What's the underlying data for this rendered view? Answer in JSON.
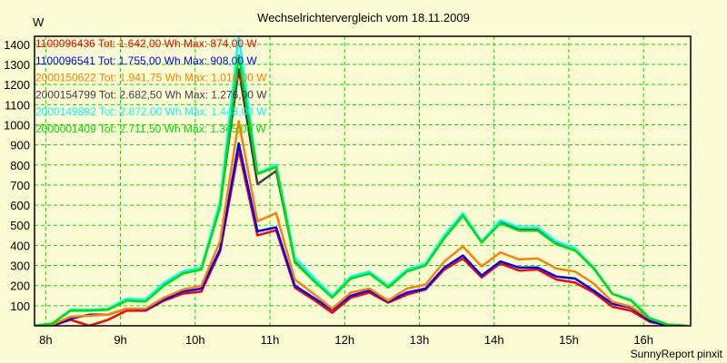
{
  "chart_data": {
    "type": "line",
    "title": "Wechselrichtervergleich vom 18.11.2009",
    "ylabel": "W",
    "xlabel": "",
    "footer": "SunnyReport pinxit",
    "ylim": [
      0,
      1440
    ],
    "xlim_hours": [
      7.85,
      16.63
    ],
    "yticks": [
      100,
      200,
      300,
      400,
      500,
      600,
      700,
      800,
      900,
      1000,
      1100,
      1200,
      1300,
      1400
    ],
    "xticks": [
      {
        "label": "8h",
        "hour": 8
      },
      {
        "label": "9h",
        "hour": 9
      },
      {
        "label": "10h",
        "hour": 10
      },
      {
        "label": "11h",
        "hour": 11
      },
      {
        "label": "12h",
        "hour": 12
      },
      {
        "label": "13h",
        "hour": 13
      },
      {
        "label": "14h",
        "hour": 14
      },
      {
        "label": "15h",
        "hour": 15
      },
      {
        "label": "16h",
        "hour": 16
      }
    ],
    "grid": true,
    "legend_position": "top-left",
    "x_start_hour": 7.833,
    "x_step_hours": 0.25,
    "series": [
      {
        "name": "1100096436",
        "legend": "1100096436 Tot: 1.642,00 Wh Max: 874,00 W",
        "color": "#ff0000",
        "values": [
          0,
          0,
          30,
          0,
          30,
          75,
          75,
          125,
          160,
          170,
          370,
          874,
          450,
          475,
          190,
          130,
          65,
          140,
          165,
          115,
          155,
          180,
          280,
          335,
          240,
          310,
          275,
          280,
          230,
          215,
          165,
          95,
          75,
          20,
          0,
          0
        ]
      },
      {
        "name": "1100096541",
        "legend": "1100096541 Tot: 1.755,00 Wh Max: 908,00 W",
        "color": "#0000ff",
        "values": [
          0,
          0,
          35,
          55,
          55,
          85,
          80,
          130,
          170,
          185,
          380,
          908,
          470,
          490,
          200,
          140,
          80,
          150,
          175,
          120,
          165,
          185,
          290,
          350,
          250,
          320,
          290,
          290,
          245,
          235,
          175,
          110,
          90,
          25,
          0,
          0
        ]
      },
      {
        "name": "2000150622",
        "legend": "2000150622 Tot: 1.941,75 Wh Max: 1.018,00 W",
        "color": "#ff8000",
        "values": [
          0,
          5,
          45,
          50,
          55,
          85,
          85,
          140,
          180,
          200,
          420,
          1018,
          520,
          560,
          230,
          160,
          85,
          165,
          185,
          125,
          185,
          205,
          320,
          395,
          295,
          365,
          330,
          335,
          285,
          270,
          210,
          120,
          95,
          35,
          5,
          0
        ]
      },
      {
        "name": "2000154799",
        "legend": "2000154799 Tot: 2.682,50 Wh Max: 1.276,00 W",
        "color": "#4a3a4a",
        "values": [
          0,
          10,
          78,
          78,
          82,
          128,
          124,
          205,
          265,
          285,
          600,
          1276,
          705,
          770,
          320,
          225,
          145,
          240,
          265,
          195,
          275,
          305,
          440,
          552,
          418,
          515,
          478,
          478,
          410,
          380,
          290,
          160,
          128,
          38,
          5,
          0
        ]
      },
      {
        "name": "2000149892",
        "legend": "2000149892 Tot: 2.872,00 Wh Max: 1.443,00 W",
        "color": "#00ffff",
        "values": [
          0,
          10,
          80,
          80,
          85,
          135,
          130,
          215,
          270,
          290,
          620,
          1443,
          760,
          800,
          340,
          240,
          150,
          245,
          270,
          200,
          280,
          310,
          450,
          560,
          420,
          525,
          490,
          490,
          420,
          385,
          290,
          160,
          130,
          40,
          5,
          0
        ]
      },
      {
        "name": "2000001409",
        "legend": "2000001409 Tot: 2.711,50 Wh Max: 1.345,00 W",
        "color": "#00e000",
        "values": [
          0,
          10,
          75,
          75,
          80,
          125,
          120,
          200,
          260,
          280,
          590,
          1345,
          755,
          790,
          315,
          225,
          140,
          235,
          260,
          190,
          270,
          300,
          435,
          548,
          414,
          510,
          473,
          473,
          405,
          375,
          285,
          158,
          125,
          36,
          5,
          0
        ]
      }
    ]
  }
}
